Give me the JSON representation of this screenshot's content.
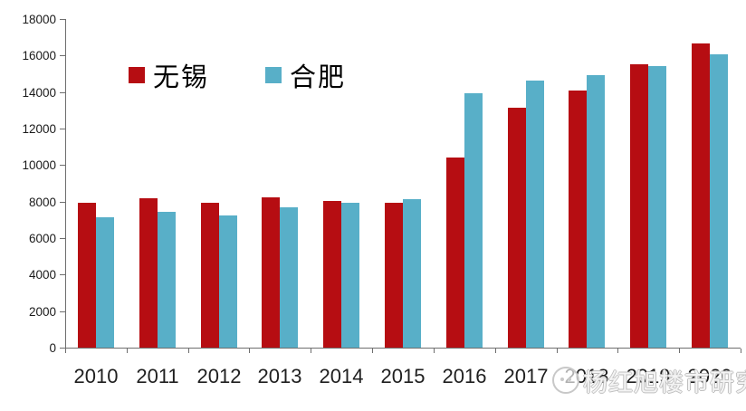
{
  "chart_data": {
    "type": "bar",
    "title": "",
    "xlabel": "",
    "ylabel": "",
    "categories": [
      "2010",
      "2011",
      "2012",
      "2013",
      "2014",
      "2015",
      "2016",
      "2017",
      "2018",
      "2019",
      "2020"
    ],
    "series": [
      {
        "name": "无锡",
        "color": "#b60d12",
        "values": [
          7950,
          8200,
          7950,
          8250,
          8050,
          7950,
          10400,
          13150,
          14100,
          15500,
          16650
        ]
      },
      {
        "name": "合肥",
        "color": "#58afc8",
        "values": [
          7150,
          7450,
          7250,
          7700,
          7950,
          8150,
          13950,
          14650,
          14950,
          15400,
          16050
        ]
      }
    ],
    "ylim": [
      0,
      18000
    ],
    "yticks": [
      0,
      2000,
      4000,
      6000,
      8000,
      10000,
      12000,
      14000,
      16000,
      18000
    ],
    "grid": false,
    "legend_position": "top-left-inside"
  },
  "watermark": {
    "text": "杨红旭楼市研究",
    "logo": "avatar-face-icon"
  },
  "colors": {
    "axis": "#6e6e6e",
    "tick_label": "#1a1a1a",
    "background": "#ffffff"
  }
}
